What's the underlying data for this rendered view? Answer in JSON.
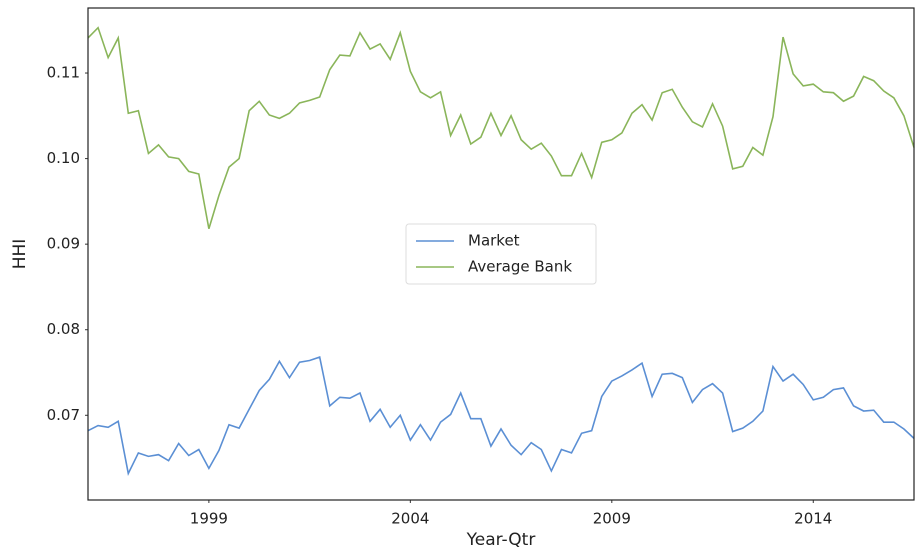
{
  "chart_data": {
    "type": "line",
    "xlabel": "Year-Qtr",
    "ylabel": "HHI",
    "x": [
      1996,
      1996.25,
      1996.5,
      1996.75,
      1997,
      1997.25,
      1997.5,
      1997.75,
      1998,
      1998.25,
      1998.5,
      1998.75,
      1999,
      1999.25,
      1999.5,
      1999.75,
      2000,
      2000.25,
      2000.5,
      2000.75,
      2001,
      2001.25,
      2001.5,
      2001.75,
      2002,
      2002.25,
      2002.5,
      2002.75,
      2003,
      2003.25,
      2003.5,
      2003.75,
      2004,
      2004.25,
      2004.5,
      2004.75,
      2005,
      2005.25,
      2005.5,
      2005.75,
      2006,
      2006.25,
      2006.5,
      2006.75,
      2007,
      2007.25,
      2007.5,
      2007.75,
      2008,
      2008.25,
      2008.5,
      2008.75,
      2009,
      2009.25,
      2009.5,
      2009.75,
      2010,
      2010.25,
      2010.5,
      2010.75,
      2011,
      2011.25,
      2011.5,
      2011.75,
      2012,
      2012.25,
      2012.5,
      2012.75,
      2013,
      2013.25,
      2013.5,
      2013.75,
      2014,
      2014.25,
      2014.5,
      2014.75,
      2015,
      2015.25,
      2015.5,
      2015.75,
      2016,
      2016.25,
      2016.5
    ],
    "series": [
      {
        "name": "Market",
        "color": "#5b8fd4",
        "values": [
          0.0682,
          0.0688,
          0.0686,
          0.0693,
          0.0632,
          0.0656,
          0.0652,
          0.0654,
          0.0647,
          0.0667,
          0.0653,
          0.066,
          0.0638,
          0.0659,
          0.0689,
          0.0685,
          0.0707,
          0.0729,
          0.0742,
          0.0763,
          0.0744,
          0.0762,
          0.0764,
          0.0768,
          0.0711,
          0.0721,
          0.072,
          0.0726,
          0.0693,
          0.0707,
          0.0686,
          0.07,
          0.0671,
          0.0689,
          0.0671,
          0.0692,
          0.0701,
          0.0726,
          0.0696,
          0.0696,
          0.0664,
          0.0684,
          0.0665,
          0.0654,
          0.0668,
          0.066,
          0.0635,
          0.066,
          0.0656,
          0.0679,
          0.0682,
          0.0722,
          0.074,
          0.0746,
          0.0753,
          0.0761,
          0.0722,
          0.0748,
          0.0749,
          0.0744,
          0.0715,
          0.073,
          0.0737,
          0.0726,
          0.0681,
          0.0685,
          0.0693,
          0.0705,
          0.0757,
          0.074,
          0.0748,
          0.0736,
          0.0718,
          0.0721,
          0.073,
          0.0732,
          0.0711,
          0.0705,
          0.0706,
          0.0692,
          0.0692,
          0.0684,
          0.0673
        ]
      },
      {
        "name": "Average Bank",
        "color": "#8ab55a",
        "values": [
          0.1141,
          0.1153,
          0.1118,
          0.1141,
          0.1053,
          0.1056,
          0.1006,
          0.1016,
          0.1002,
          0.1,
          0.0985,
          0.0982,
          0.0918,
          0.0957,
          0.099,
          0.1,
          0.1056,
          0.1067,
          0.1051,
          0.1047,
          0.1053,
          0.1065,
          0.1068,
          0.1072,
          0.1104,
          0.1121,
          0.112,
          0.1147,
          0.1128,
          0.1134,
          0.1116,
          0.1147,
          0.1102,
          0.1078,
          0.1071,
          0.1078,
          0.1027,
          0.1051,
          0.1017,
          0.1025,
          0.1053,
          0.1027,
          0.105,
          0.1022,
          0.1011,
          0.1018,
          0.1003,
          0.098,
          0.098,
          0.1006,
          0.0978,
          0.1019,
          0.1022,
          0.103,
          0.1053,
          0.1063,
          0.1045,
          0.1077,
          0.1081,
          0.106,
          0.1043,
          0.1037,
          0.1064,
          0.1038,
          0.0988,
          0.0991,
          0.1013,
          0.1004,
          0.1049,
          0.1142,
          0.1099,
          0.1085,
          0.1087,
          0.1078,
          0.1077,
          0.1067,
          0.1073,
          0.1096,
          0.1091,
          0.1079,
          0.1071,
          0.105,
          0.1013
        ]
      }
    ],
    "xlim": [
      1996,
      2016.5
    ],
    "xticks": [
      1999,
      2004,
      2009,
      2014
    ],
    "ylim": [
      0.0601,
      0.1176
    ],
    "yticks": [
      0.07,
      0.08,
      0.09,
      {
        "value": 0.1,
        "label": "0.10"
      },
      0.11
    ],
    "grid": false,
    "legend": "center"
  }
}
